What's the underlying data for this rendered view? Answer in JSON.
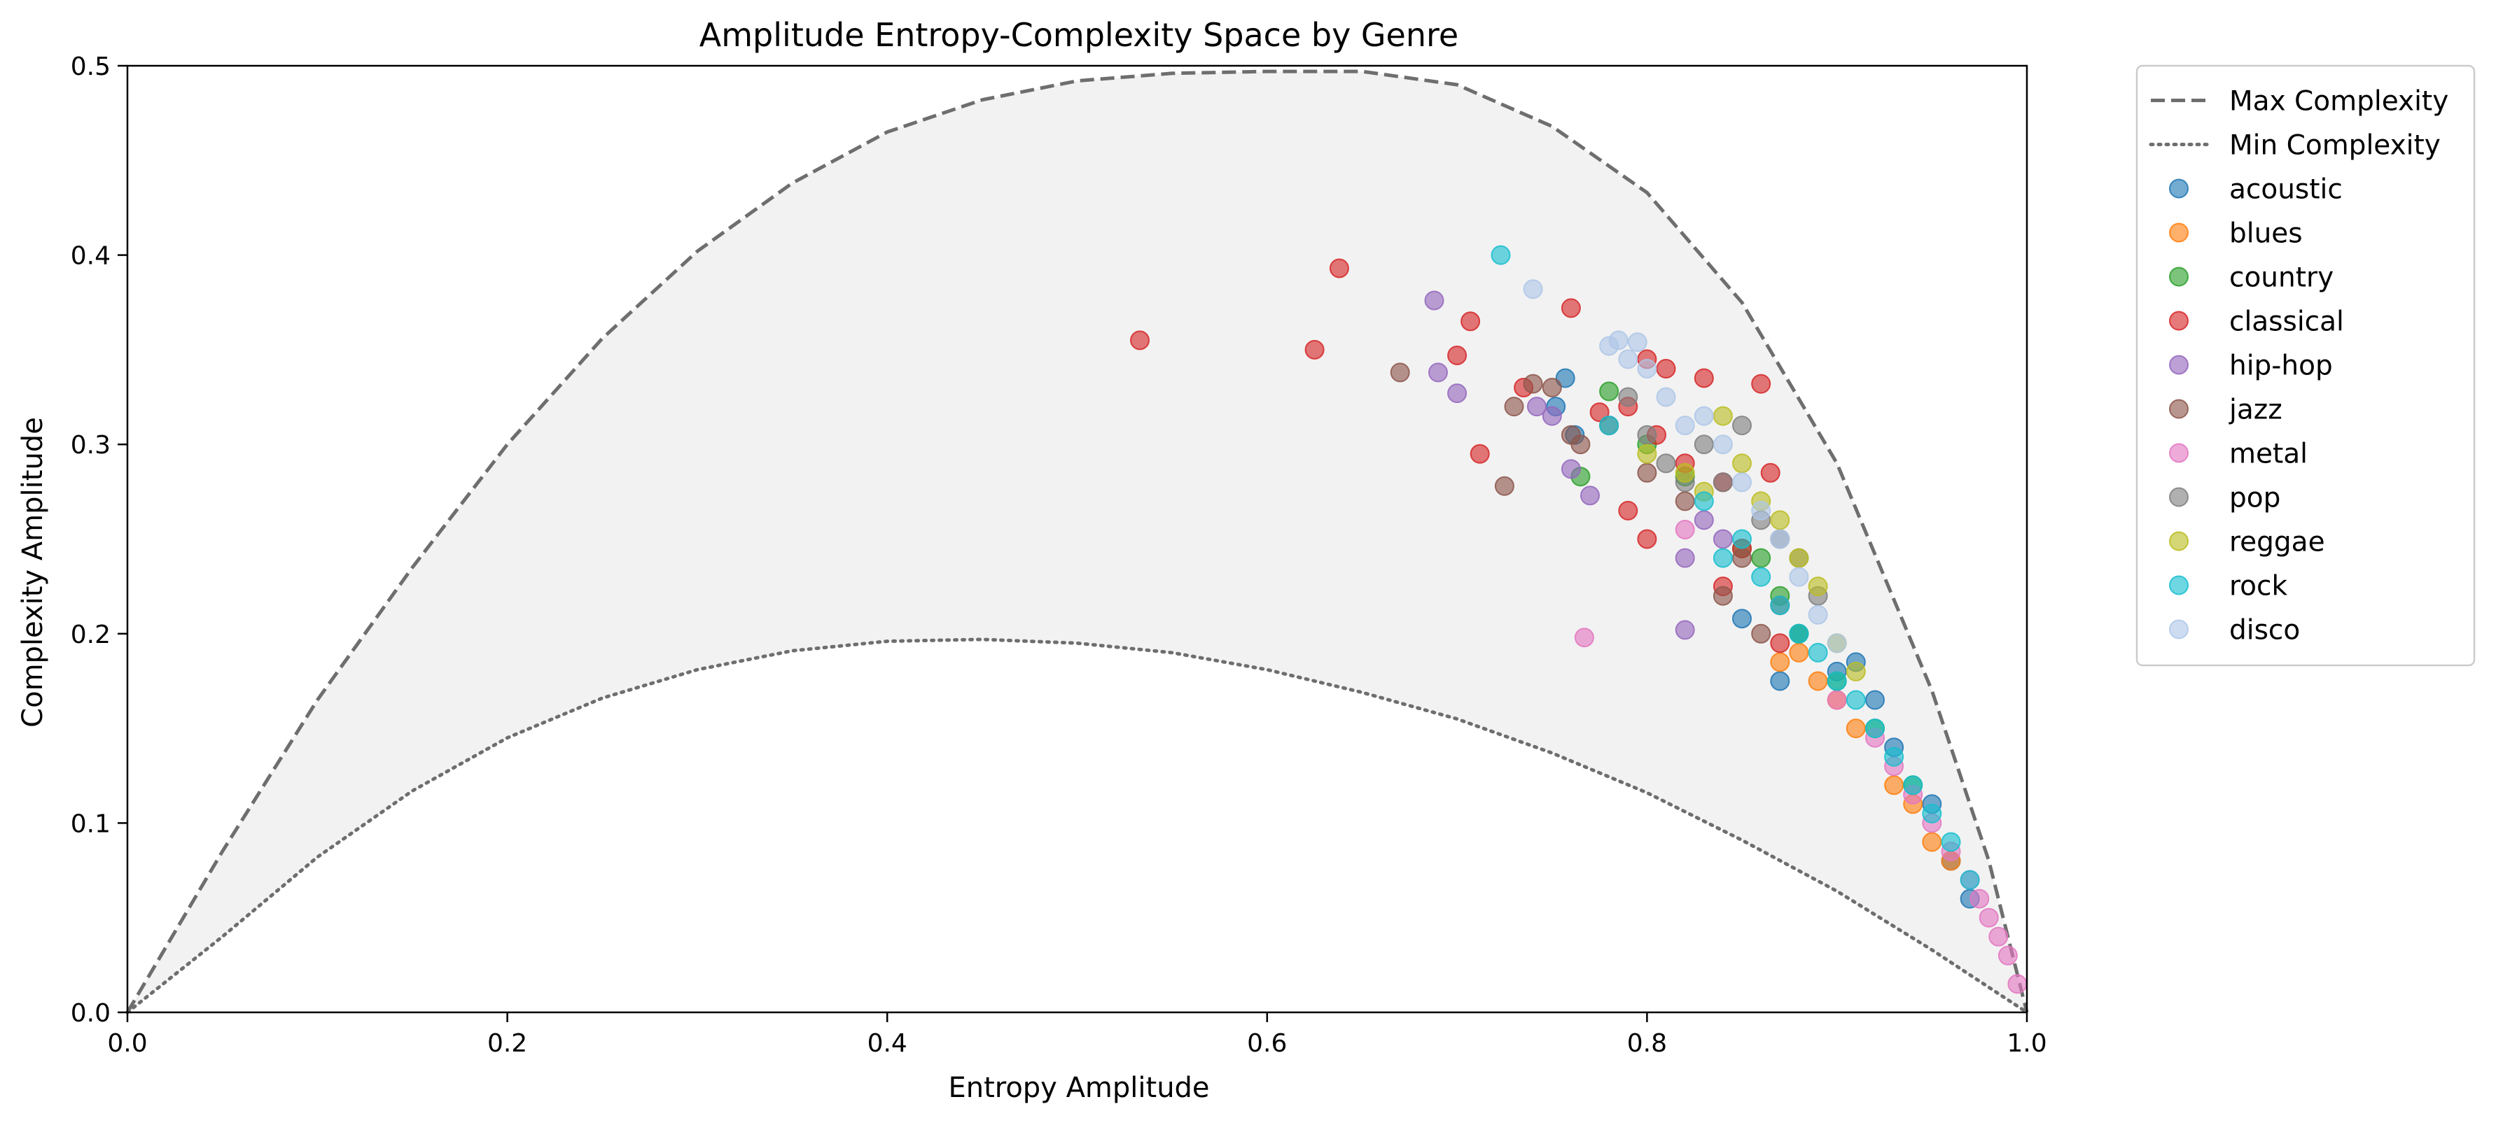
{
  "chart_data": {
    "type": "scatter",
    "title": "Amplitude Entropy-Complexity Space by Genre",
    "xlabel": "Entropy Amplitude",
    "ylabel": "Complexity Amplitude",
    "xlim": [
      0.0,
      1.0
    ],
    "ylim": [
      0.0,
      0.5
    ],
    "x_ticks": [
      "0.0",
      "0.2",
      "0.4",
      "0.6",
      "0.8",
      "1.0"
    ],
    "y_ticks": [
      "0.0",
      "0.1",
      "0.2",
      "0.3",
      "0.4",
      "0.5"
    ],
    "grid": false,
    "legend_position": "outside-right-top",
    "curves": [
      {
        "name": "Max Complexity",
        "style": "dashed",
        "color": "#6e6e6e",
        "points": [
          [
            0.0,
            0.0
          ],
          [
            0.05,
            0.085
          ],
          [
            0.1,
            0.165
          ],
          [
            0.15,
            0.235
          ],
          [
            0.2,
            0.3
          ],
          [
            0.25,
            0.356
          ],
          [
            0.3,
            0.402
          ],
          [
            0.35,
            0.438
          ],
          [
            0.4,
            0.465
          ],
          [
            0.45,
            0.482
          ],
          [
            0.5,
            0.492
          ],
          [
            0.55,
            0.496
          ],
          [
            0.6,
            0.497
          ],
          [
            0.65,
            0.497
          ],
          [
            0.7,
            0.49
          ],
          [
            0.75,
            0.468
          ],
          [
            0.8,
            0.433
          ],
          [
            0.85,
            0.375
          ],
          [
            0.9,
            0.29
          ],
          [
            0.95,
            0.17
          ],
          [
            0.98,
            0.08
          ],
          [
            1.0,
            0.0
          ]
        ]
      },
      {
        "name": "Min Complexity",
        "style": "dotted",
        "color": "#6e6e6e",
        "points": [
          [
            0.0,
            0.0
          ],
          [
            0.05,
            0.04
          ],
          [
            0.1,
            0.082
          ],
          [
            0.15,
            0.117
          ],
          [
            0.2,
            0.145
          ],
          [
            0.25,
            0.166
          ],
          [
            0.3,
            0.181
          ],
          [
            0.35,
            0.191
          ],
          [
            0.4,
            0.196
          ],
          [
            0.45,
            0.197
          ],
          [
            0.5,
            0.195
          ],
          [
            0.55,
            0.19
          ],
          [
            0.6,
            0.181
          ],
          [
            0.65,
            0.169
          ],
          [
            0.7,
            0.155
          ],
          [
            0.75,
            0.137
          ],
          [
            0.8,
            0.116
          ],
          [
            0.85,
            0.091
          ],
          [
            0.9,
            0.064
          ],
          [
            0.95,
            0.033
          ],
          [
            1.0,
            0.0
          ]
        ]
      }
    ],
    "series": [
      {
        "name": "acoustic",
        "color": "#1f77b4",
        "x": [
          0.752,
          0.757,
          0.762,
          0.85,
          0.87,
          0.88,
          0.9,
          0.91,
          0.92,
          0.93,
          0.95,
          0.96,
          0.97
        ],
        "y": [
          0.32,
          0.335,
          0.305,
          0.208,
          0.175,
          0.2,
          0.18,
          0.185,
          0.165,
          0.14,
          0.11,
          0.08,
          0.06
        ]
      },
      {
        "name": "blues",
        "color": "#ff7f0e",
        "x": [
          0.87,
          0.88,
          0.89,
          0.9,
          0.91,
          0.93,
          0.94,
          0.95,
          0.96
        ],
        "y": [
          0.185,
          0.19,
          0.175,
          0.165,
          0.15,
          0.12,
          0.11,
          0.09,
          0.08
        ]
      },
      {
        "name": "country",
        "color": "#2ca02c",
        "x": [
          0.765,
          0.78,
          0.8,
          0.82,
          0.85,
          0.86,
          0.87,
          0.88,
          0.9,
          0.92,
          0.94
        ],
        "y": [
          0.283,
          0.328,
          0.3,
          0.283,
          0.245,
          0.24,
          0.22,
          0.2,
          0.175,
          0.15,
          0.12
        ]
      },
      {
        "name": "classical",
        "color": "#d62728",
        "x": [
          0.533,
          0.625,
          0.638,
          0.7,
          0.707,
          0.712,
          0.735,
          0.76,
          0.775,
          0.79,
          0.8,
          0.81,
          0.82,
          0.83,
          0.84,
          0.86,
          0.865,
          0.87,
          0.79,
          0.8,
          0.805,
          0.84,
          0.85
        ],
        "y": [
          0.355,
          0.35,
          0.393,
          0.347,
          0.365,
          0.295,
          0.33,
          0.372,
          0.317,
          0.32,
          0.345,
          0.34,
          0.29,
          0.335,
          0.28,
          0.332,
          0.285,
          0.195,
          0.265,
          0.25,
          0.305,
          0.225,
          0.245
        ]
      },
      {
        "name": "hip-hop",
        "color": "#9467bd",
        "x": [
          0.688,
          0.69,
          0.7,
          0.742,
          0.75,
          0.76,
          0.77,
          0.82,
          0.82,
          0.83,
          0.84
        ],
        "y": [
          0.376,
          0.338,
          0.327,
          0.32,
          0.315,
          0.287,
          0.273,
          0.24,
          0.202,
          0.26,
          0.25
        ]
      },
      {
        "name": "jazz",
        "color": "#8c564b",
        "x": [
          0.67,
          0.725,
          0.73,
          0.74,
          0.75,
          0.76,
          0.765,
          0.78,
          0.8,
          0.82,
          0.84,
          0.85,
          0.86,
          0.87
        ],
        "y": [
          0.338,
          0.278,
          0.32,
          0.332,
          0.33,
          0.305,
          0.3,
          0.31,
          0.285,
          0.27,
          0.22,
          0.24,
          0.2,
          0.215
        ]
      },
      {
        "name": "metal",
        "color": "#e377c2",
        "x": [
          0.767,
          0.82,
          0.9,
          0.92,
          0.93,
          0.94,
          0.95,
          0.96,
          0.97,
          0.975,
          0.98,
          0.985,
          0.99,
          0.995
        ],
        "y": [
          0.198,
          0.255,
          0.165,
          0.145,
          0.13,
          0.115,
          0.1,
          0.085,
          0.07,
          0.06,
          0.05,
          0.04,
          0.03,
          0.015
        ]
      },
      {
        "name": "pop",
        "color": "#7f7f7f",
        "x": [
          0.79,
          0.8,
          0.81,
          0.82,
          0.83,
          0.84,
          0.85,
          0.86,
          0.87,
          0.88,
          0.89
        ],
        "y": [
          0.325,
          0.305,
          0.29,
          0.28,
          0.3,
          0.28,
          0.31,
          0.26,
          0.25,
          0.24,
          0.22
        ]
      },
      {
        "name": "reggae",
        "color": "#bcbd22",
        "x": [
          0.8,
          0.82,
          0.83,
          0.84,
          0.85,
          0.86,
          0.87,
          0.88,
          0.89,
          0.9,
          0.91
        ],
        "y": [
          0.295,
          0.285,
          0.275,
          0.315,
          0.29,
          0.27,
          0.26,
          0.24,
          0.225,
          0.195,
          0.18
        ]
      },
      {
        "name": "rock",
        "color": "#17becf",
        "x": [
          0.723,
          0.78,
          0.83,
          0.84,
          0.85,
          0.86,
          0.87,
          0.88,
          0.89,
          0.9,
          0.91,
          0.92,
          0.93,
          0.94,
          0.95,
          0.96,
          0.97
        ],
        "y": [
          0.4,
          0.31,
          0.27,
          0.24,
          0.25,
          0.23,
          0.215,
          0.2,
          0.19,
          0.175,
          0.165,
          0.15,
          0.135,
          0.12,
          0.105,
          0.09,
          0.07
        ]
      },
      {
        "name": "disco",
        "color": "#aec7e8",
        "x": [
          0.74,
          0.78,
          0.785,
          0.79,
          0.795,
          0.8,
          0.81,
          0.82,
          0.83,
          0.84,
          0.85,
          0.86,
          0.87,
          0.88,
          0.89,
          0.9
        ],
        "y": [
          0.382,
          0.352,
          0.355,
          0.345,
          0.354,
          0.34,
          0.325,
          0.31,
          0.315,
          0.3,
          0.28,
          0.265,
          0.25,
          0.23,
          0.21,
          0.195
        ]
      }
    ]
  }
}
